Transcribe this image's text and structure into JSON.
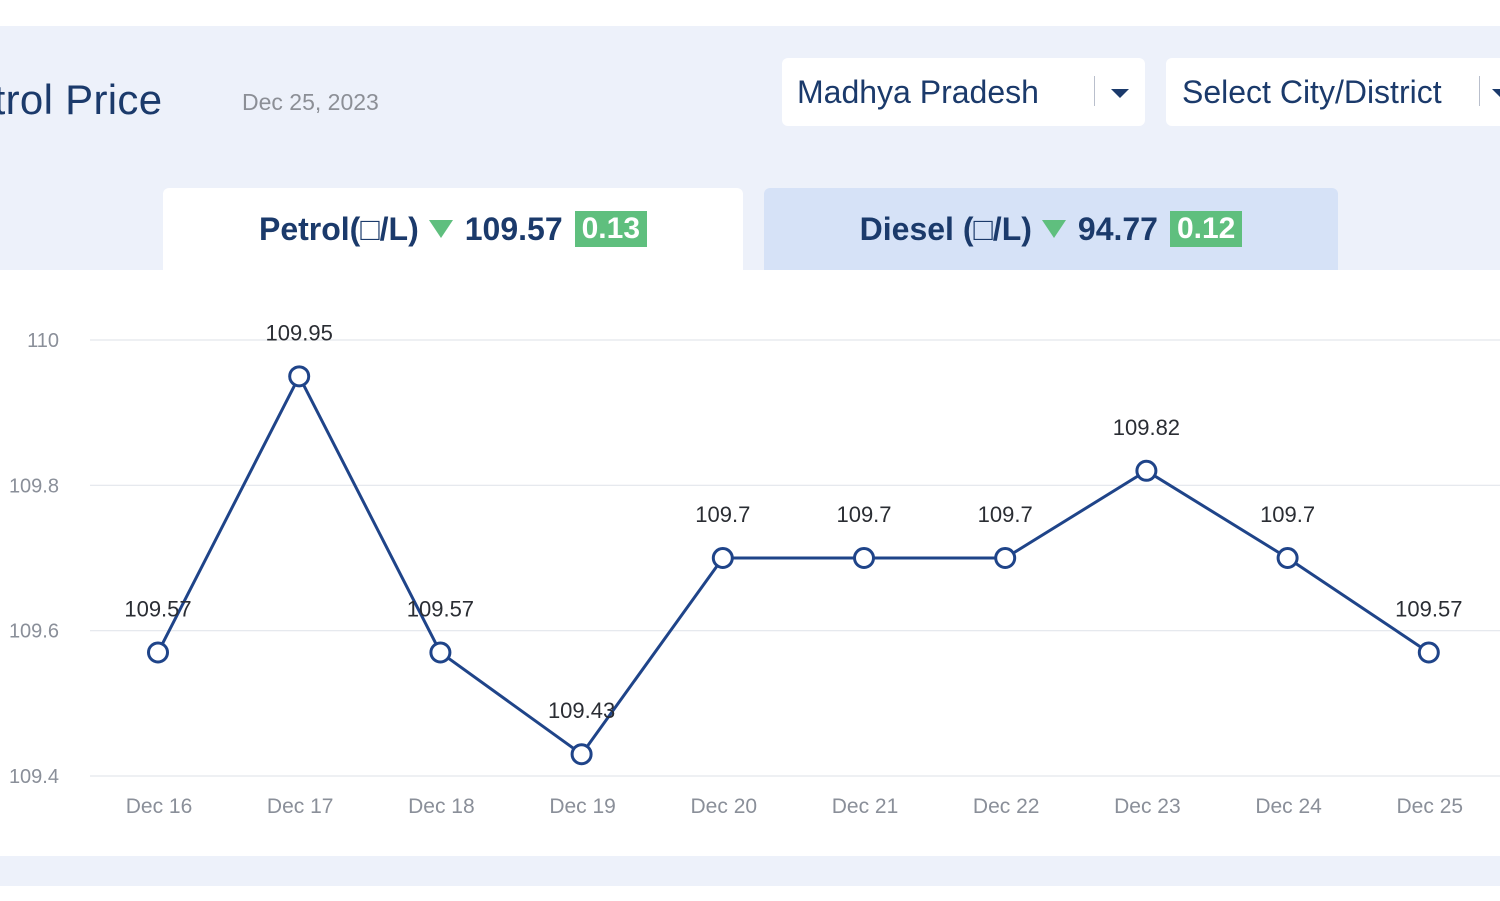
{
  "header": {
    "title": "etrol Price",
    "date": "Dec 25, 2023"
  },
  "filters": {
    "state": "Madhya Pradesh",
    "city_placeholder": "Select City/District"
  },
  "tabs": [
    {
      "label": "Petrol(□/L)",
      "price": "109.57",
      "change": "0.13",
      "trend": "down",
      "active": true
    },
    {
      "label": "Diesel (□/L)",
      "price": "94.77",
      "change": "0.12",
      "trend": "down",
      "active": false
    }
  ],
  "colors": {
    "line": "#1f4489",
    "change_badge": "#5fbf7e",
    "active_tab": "#ffffff",
    "inactive_tab": "#d6e2f7",
    "text_primary": "#1b3a6b"
  },
  "chart_data": {
    "type": "line",
    "categories": [
      "Dec 16",
      "Dec 17",
      "Dec 18",
      "Dec 19",
      "Dec 20",
      "Dec 21",
      "Dec 22",
      "Dec 23",
      "Dec 24",
      "Dec 25"
    ],
    "values": [
      109.57,
      109.95,
      109.57,
      109.43,
      109.7,
      109.7,
      109.7,
      109.82,
      109.7,
      109.57
    ],
    "value_labels": [
      "109.57",
      "109.95",
      "109.57",
      "109.43",
      "109.7",
      "109.7",
      "109.7",
      "109.82",
      "109.7",
      "109.57"
    ],
    "ylim": [
      109.4,
      110
    ],
    "yticks": [
      109.4,
      109.6,
      109.8,
      110
    ],
    "ytick_labels": [
      "109.4",
      "109.6",
      "109.8",
      "110"
    ],
    "grid": true
  }
}
